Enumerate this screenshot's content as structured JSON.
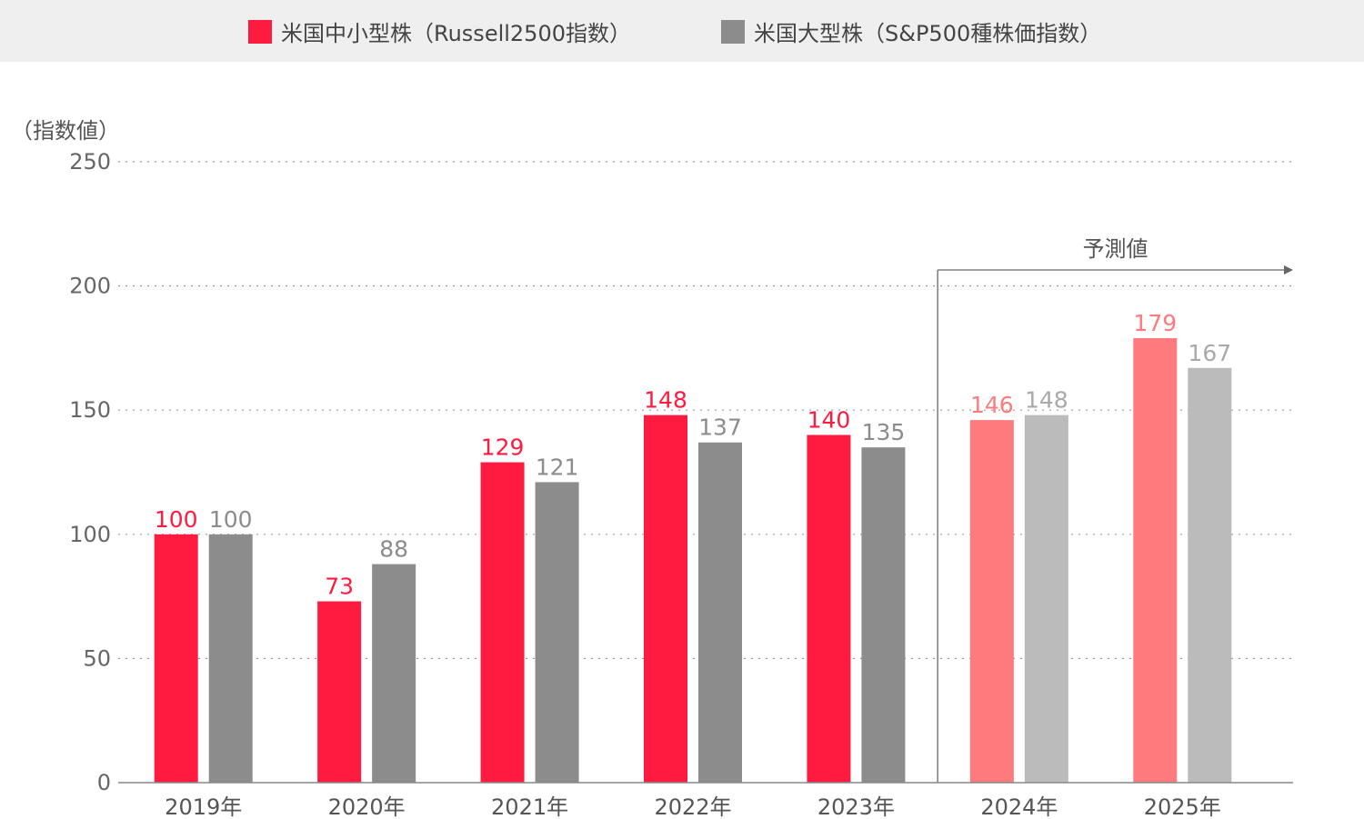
{
  "legend": {
    "items": [
      {
        "label": "米国中小型株（Russell2500指数）",
        "color": "#ff1a40"
      },
      {
        "label": "米国大型株（S&P500種株価指数）",
        "color": "#8c8c8c"
      }
    ]
  },
  "forecast": {
    "label": "予測値",
    "start_index": 5,
    "colors": [
      "#ff7a7c",
      "#bbbbbb"
    ]
  },
  "chart_data": {
    "type": "bar",
    "ylabel": "（指数値）",
    "ylim": [
      0,
      250
    ],
    "yticks": [
      0,
      50,
      100,
      150,
      200,
      250
    ],
    "grid": true,
    "legend_position": "top",
    "categories": [
      "2019年",
      "2020年",
      "2021年",
      "2022年",
      "2023年",
      "2024年",
      "2025年"
    ],
    "series": [
      {
        "name": "米国中小型株（Russell2500指数）",
        "values": [
          100,
          73,
          129,
          148,
          140,
          146,
          179
        ]
      },
      {
        "name": "米国大型株（S&P500種株価指数）",
        "values": [
          100,
          88,
          121,
          137,
          135,
          148,
          167
        ]
      }
    ]
  }
}
